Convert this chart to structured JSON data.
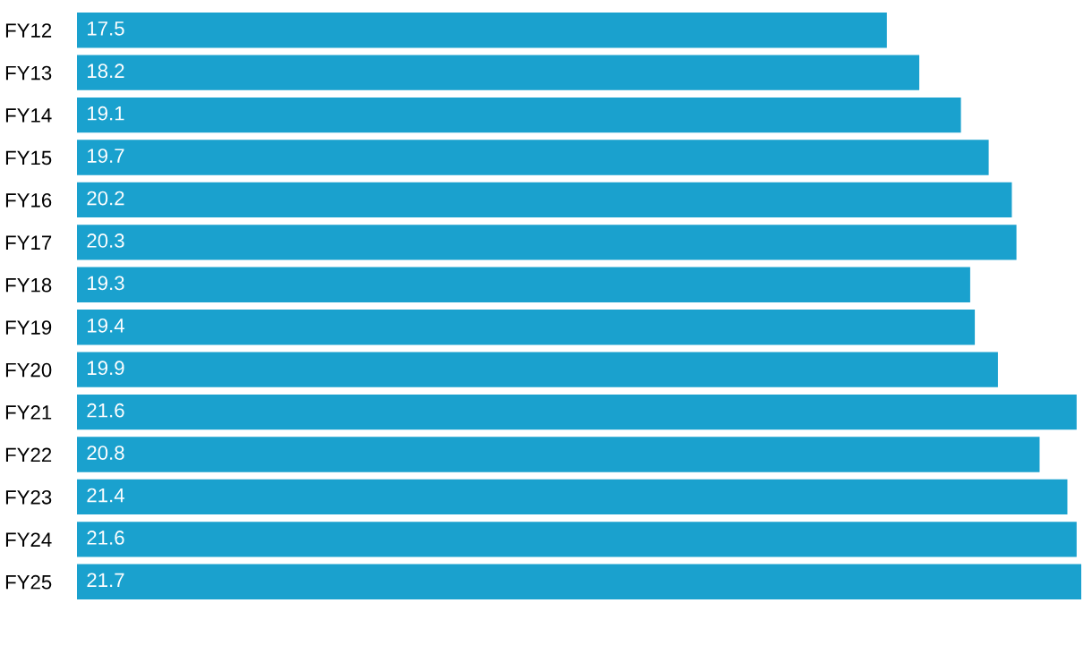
{
  "chart_data": {
    "type": "bar",
    "orientation": "horizontal",
    "categories": [
      "FY12",
      "FY13",
      "FY14",
      "FY15",
      "FY16",
      "FY17",
      "FY18",
      "FY19",
      "FY20",
      "FY21",
      "FY22",
      "FY23",
      "FY24",
      "FY25"
    ],
    "values": [
      17.5,
      18.2,
      19.1,
      19.7,
      20.2,
      20.3,
      19.3,
      19.4,
      19.9,
      21.6,
      20.8,
      21.4,
      21.6,
      21.7
    ],
    "color": "#1aa1ce",
    "data_labels": true,
    "tick_labels": "y"
  }
}
